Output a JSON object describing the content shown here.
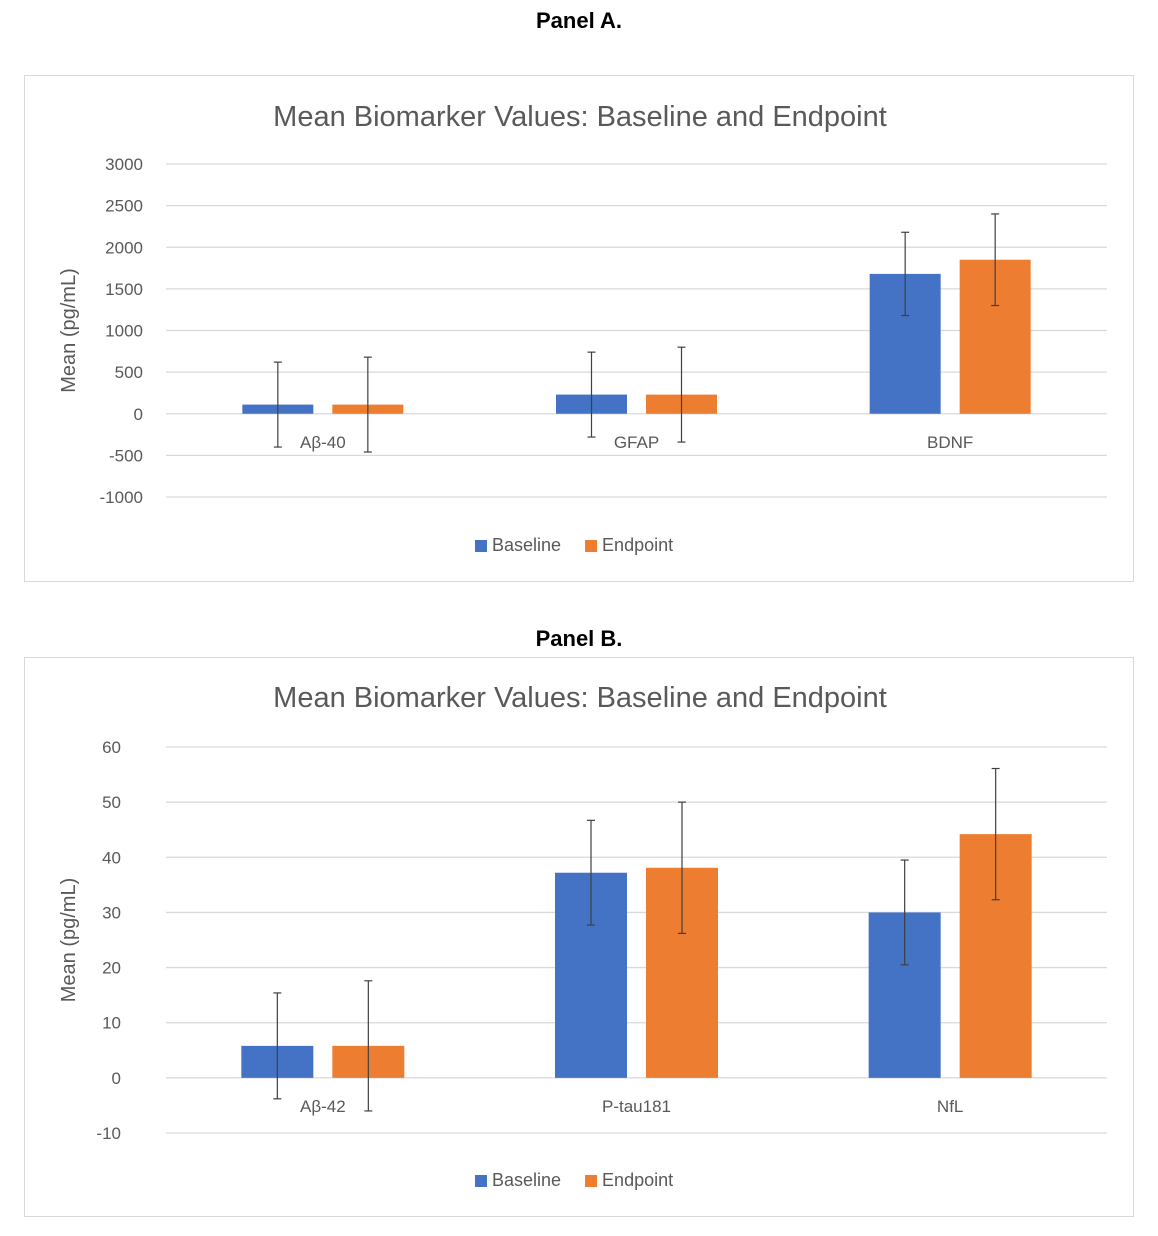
{
  "panels": [
    {
      "label": "Panel A.",
      "chart_data": {
        "type": "bar",
        "title": "Mean Biomarker Values: Baseline and Endpoint",
        "xlabel": "",
        "ylabel": "Mean (pg/mL)",
        "ylim": [
          -1000,
          3000
        ],
        "yticks": [
          3000,
          2500,
          2000,
          1500,
          1000,
          500,
          0,
          -500,
          -1000
        ],
        "categories": [
          "Aβ-40",
          "GFAP",
          "BDNF"
        ],
        "series": [
          {
            "name": "Baseline",
            "color": "#4472c4",
            "values": [
              110,
              230,
              1680
            ],
            "error": [
              510,
              510,
              500
            ]
          },
          {
            "name": "Endpoint",
            "color": "#ed7d31",
            "values": [
              110,
              230,
              1850
            ],
            "error": [
              570,
              570,
              550
            ]
          }
        ],
        "grid": true,
        "legend": "bottom"
      }
    },
    {
      "label": "Panel B.",
      "chart_data": {
        "type": "bar",
        "title": "Mean Biomarker Values: Baseline and Endpoint",
        "xlabel": "",
        "ylabel": "Mean (pg/mL)",
        "ylim": [
          -10,
          60
        ],
        "yticks": [
          60,
          50,
          40,
          30,
          20,
          10,
          0,
          -10
        ],
        "categories": [
          "Aβ-42",
          "P-tau181",
          "NfL"
        ],
        "series": [
          {
            "name": "Baseline",
            "color": "#4472c4",
            "values": [
              5.8,
              37.2,
              30.0
            ],
            "error": [
              9.6,
              9.5,
              9.5
            ]
          },
          {
            "name": "Endpoint",
            "color": "#ed7d31",
            "values": [
              5.8,
              38.1,
              44.2
            ],
            "error": [
              11.8,
              11.9,
              11.9
            ]
          }
        ],
        "grid": true,
        "legend": "bottom"
      }
    }
  ]
}
